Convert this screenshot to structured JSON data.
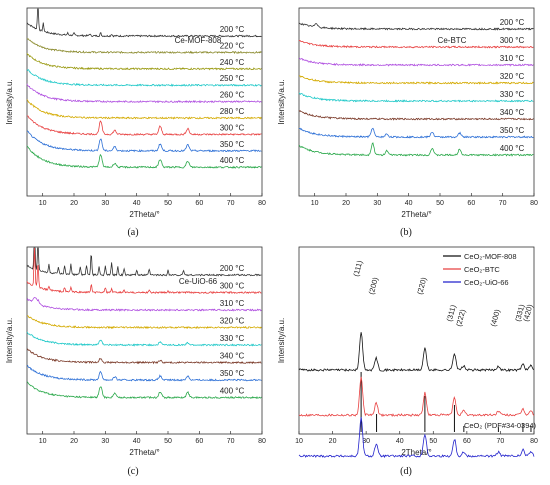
{
  "chart_data": [
    {
      "type": "line",
      "panel": "(a)",
      "title": "Ce-MOF-808",
      "xlabel": "2Theta/°",
      "ylabel": "Intensity/a.u.",
      "xlim": [
        5,
        80
      ],
      "xticks": [
        10,
        20,
        30,
        40,
        50,
        60,
        70,
        80
      ],
      "series": [
        {
          "name": "200 °C",
          "color": "#333333",
          "peaks": [
            [
              8.5,
              26
            ],
            [
              10.2,
              8
            ],
            [
              18,
              2
            ],
            [
              20,
              2
            ],
            [
              25,
              2
            ],
            [
              28.5,
              3
            ],
            [
              32,
              2
            ]
          ],
          "sharp": true
        },
        {
          "name": "220 °C",
          "color": "#8b8b2e",
          "peaks": []
        },
        {
          "name": "240 °C",
          "color": "#9a9a12",
          "peaks": []
        },
        {
          "name": "250 °C",
          "color": "#1ec8c8",
          "peaks": []
        },
        {
          "name": "260 °C",
          "color": "#b050e0",
          "peaks": []
        },
        {
          "name": "280 °C",
          "color": "#d4aa00",
          "peaks": []
        },
        {
          "name": "300 °C",
          "color": "#e84040",
          "peaks": [
            [
              28.5,
              13
            ],
            [
              33,
              4
            ],
            [
              47.5,
              8
            ],
            [
              56.3,
              6
            ]
          ]
        },
        {
          "name": "350 °C",
          "color": "#2c6fd6",
          "peaks": [
            [
              28.5,
              12
            ],
            [
              33,
              4
            ],
            [
              47.5,
              7
            ],
            [
              56.3,
              6
            ]
          ]
        },
        {
          "name": "400 °C",
          "color": "#2aa84a",
          "peaks": [
            [
              28.5,
              12
            ],
            [
              33,
              4
            ],
            [
              47.5,
              8
            ],
            [
              56.3,
              6
            ]
          ]
        }
      ]
    },
    {
      "type": "line",
      "panel": "(b)",
      "title": "Ce-BTC",
      "xlabel": "2Theta/°",
      "ylabel": "Intensity/a.u.",
      "xlim": [
        5,
        80
      ],
      "xticks": [
        10,
        20,
        30,
        40,
        50,
        60,
        70,
        80
      ],
      "series": [
        {
          "name": "200 °C",
          "color": "#333333",
          "peaks": [
            [
              10.5,
              4
            ]
          ]
        },
        {
          "name": "300 °C",
          "color": "#e84040",
          "peaks": []
        },
        {
          "name": "310 °C",
          "color": "#b050e0",
          "peaks": []
        },
        {
          "name": "320 °C",
          "color": "#d4aa00",
          "peaks": []
        },
        {
          "name": "330 °C",
          "color": "#1ec8c8",
          "peaks": []
        },
        {
          "name": "340 °C",
          "color": "#7b3b2a",
          "peaks": []
        },
        {
          "name": "350 °C",
          "color": "#2c6fd6",
          "peaks": [
            [
              28.5,
              9
            ],
            [
              33,
              3
            ],
            [
              47.5,
              5
            ],
            [
              56.3,
              4
            ]
          ]
        },
        {
          "name": "400 °C",
          "color": "#2aa84a",
          "peaks": [
            [
              28.5,
              12
            ],
            [
              33,
              4
            ],
            [
              47.5,
              7
            ],
            [
              56.3,
              6
            ]
          ]
        }
      ]
    },
    {
      "type": "line",
      "panel": "(c)",
      "title": "Ce-UiO-66",
      "xlabel": "2Theta/°",
      "ylabel": "Intensity/a.u.",
      "xlim": [
        5,
        80
      ],
      "xticks": [
        10,
        20,
        30,
        40,
        50,
        60,
        70,
        80
      ],
      "series": [
        {
          "name": "200 °C",
          "color": "#333333",
          "peaks": [
            [
              7.4,
              40
            ],
            [
              8.5,
              30
            ],
            [
              12,
              8
            ],
            [
              15,
              6
            ],
            [
              17,
              8
            ],
            [
              19,
              10
            ],
            [
              22,
              8
            ],
            [
              24,
              10
            ],
            [
              25.5,
              22
            ],
            [
              28,
              8
            ],
            [
              30,
              10
            ],
            [
              32,
              12
            ],
            [
              34,
              8
            ],
            [
              36,
              6
            ],
            [
              40,
              5
            ],
            [
              44,
              6
            ],
            [
              50,
              5
            ],
            [
              55,
              5
            ]
          ],
          "sharp": true
        },
        {
          "name": "300 °C",
          "color": "#e84040",
          "peaks": [
            [
              7.4,
              40
            ],
            [
              8.5,
              25
            ],
            [
              12,
              4
            ],
            [
              17,
              4
            ],
            [
              19,
              5
            ],
            [
              25.5,
              8
            ],
            [
              30,
              5
            ],
            [
              32,
              4
            ],
            [
              36,
              3
            ],
            [
              44,
              3
            ],
            [
              50,
              2
            ]
          ],
          "sharp": true
        },
        {
          "name": "310 °C",
          "color": "#b050e0",
          "peaks": [
            [
              7.4,
              6
            ],
            [
              8.5,
              4
            ]
          ]
        },
        {
          "name": "320 °C",
          "color": "#d4aa00",
          "peaks": []
        },
        {
          "name": "330 °C",
          "color": "#1ec8c8",
          "peaks": [
            [
              28.5,
              5
            ],
            [
              47.5,
              3
            ],
            [
              56.3,
              2
            ]
          ]
        },
        {
          "name": "340 °C",
          "color": "#7b3b2a",
          "peaks": [
            [
              28.5,
              4
            ],
            [
              47.5,
              2
            ]
          ]
        },
        {
          "name": "350 °C",
          "color": "#2c6fd6",
          "peaks": [
            [
              28.5,
              8
            ],
            [
              33,
              3
            ],
            [
              47.5,
              4
            ],
            [
              56.3,
              4
            ]
          ]
        },
        {
          "name": "400 °C",
          "color": "#2aa84a",
          "peaks": [
            [
              28.5,
              11
            ],
            [
              33,
              4
            ],
            [
              47.5,
              6
            ],
            [
              56.3,
              5
            ]
          ]
        }
      ]
    },
    {
      "type": "line",
      "panel": "(d)",
      "title": "",
      "xlabel": "2Theta/°",
      "ylabel": "Intensity/a.u.",
      "xlim": [
        10,
        80
      ],
      "xticks": [
        10,
        20,
        30,
        40,
        50,
        60,
        70,
        80
      ],
      "series": [
        {
          "name": "CeO₂-MOF-808",
          "color": "#111111",
          "peaks": [
            [
              28.5,
              38
            ],
            [
              33,
              12
            ],
            [
              47.5,
              22
            ],
            [
              56.3,
              17
            ],
            [
              59,
              4
            ],
            [
              69.4,
              4
            ],
            [
              76.7,
              6
            ],
            [
              79,
              4
            ]
          ]
        },
        {
          "name": "CeO₂-BTC",
          "color": "#e84040",
          "peaks": [
            [
              28.5,
              38
            ],
            [
              33,
              12
            ],
            [
              47.5,
              22
            ],
            [
              56.3,
              17
            ],
            [
              59,
              4
            ],
            [
              69.4,
              4
            ],
            [
              76.7,
              6
            ],
            [
              79,
              4
            ]
          ]
        },
        {
          "name": "CeO₂-UiO-66",
          "color": "#2222cc",
          "peaks": [
            [
              28.5,
              38
            ],
            [
              33,
              12
            ],
            [
              47.5,
              22
            ],
            [
              56.3,
              17
            ],
            [
              59,
              4
            ],
            [
              69.4,
              4
            ],
            [
              76.7,
              6
            ],
            [
              79,
              4
            ]
          ]
        }
      ],
      "reference": {
        "name": "CeO₂ (PDF#34-0394)",
        "sticks": [
          [
            28.5,
            1.0
          ],
          [
            33.1,
            0.3
          ],
          [
            47.5,
            0.6
          ],
          [
            56.3,
            0.45
          ],
          [
            59.1,
            0.1
          ],
          [
            69.4,
            0.08
          ],
          [
            76.7,
            0.15
          ],
          [
            79.1,
            0.1
          ]
        ]
      },
      "peak_labels": [
        {
          "x": 28.5,
          "text": "(111)"
        },
        {
          "x": 33.1,
          "text": "(200)"
        },
        {
          "x": 47.5,
          "text": "(220)"
        },
        {
          "x": 56.3,
          "text": "(311)"
        },
        {
          "x": 59.1,
          "text": "(222)"
        },
        {
          "x": 69.4,
          "text": "(400)"
        },
        {
          "x": 76.7,
          "text": "(331)"
        },
        {
          "x": 79.1,
          "text": "(420)"
        }
      ]
    }
  ]
}
